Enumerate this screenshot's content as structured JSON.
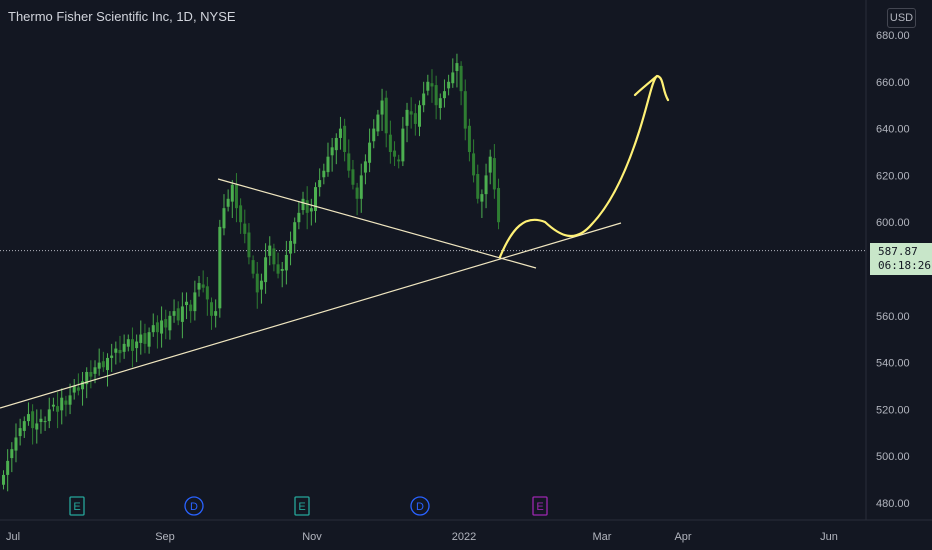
{
  "header": {
    "title": "Thermo Fisher Scientific Inc, 1D, NYSE",
    "currency": "USD"
  },
  "price_badge": {
    "price": "587.87",
    "countdown": "06:18:26"
  },
  "colors": {
    "background": "#131722",
    "up": "#4caf50",
    "down": "#2e7d32",
    "trendline": "#f0e6c0",
    "drawing": "#fff176",
    "earnings": "#26a69a",
    "dividend": "#2962ff",
    "earnings_upcoming": "#9c27b0",
    "axis_text": "#b2b5be"
  },
  "chart_data": {
    "type": "candlestick",
    "title": "Thermo Fisher Scientific Inc, 1D, NYSE",
    "y_axis": {
      "ticks": [
        "480.00",
        "500.00",
        "520.00",
        "540.00",
        "560.00",
        "580.00",
        "600.00",
        "620.00",
        "640.00",
        "660.00",
        "680.00"
      ],
      "ylim": [
        476,
        682
      ],
      "position": "right"
    },
    "x_axis": {
      "ticks": [
        "Jul",
        "Sep",
        "Nov",
        "2022",
        "Mar",
        "Apr",
        "Jun"
      ]
    },
    "last_price": 587.87,
    "candle_path_closes": [
      492,
      498,
      503,
      508,
      512,
      515,
      518,
      512,
      514,
      516,
      515,
      520,
      522,
      519,
      525,
      522,
      526,
      530,
      528,
      532,
      536,
      534,
      538,
      540,
      538,
      542,
      543,
      546,
      544,
      548,
      550,
      545,
      549,
      552,
      548,
      553,
      556,
      553,
      558,
      555,
      560,
      562,
      558,
      564,
      566,
      562,
      570,
      574,
      572,
      567,
      560,
      562,
      598,
      606,
      610,
      616,
      606,
      600,
      595,
      585,
      578,
      570,
      575,
      585,
      590,
      582,
      578,
      580,
      586,
      592,
      600,
      604,
      610,
      604,
      606,
      615,
      618,
      622,
      628,
      632,
      636,
      640,
      630,
      622,
      616,
      610,
      620,
      626,
      634,
      640,
      646,
      652,
      638,
      630,
      628,
      626,
      640,
      648,
      646,
      642,
      650,
      655,
      660,
      658,
      650,
      653,
      656,
      660,
      664,
      668,
      656,
      640,
      630,
      620,
      610,
      612,
      620,
      628,
      614,
      600
    ],
    "trendlines": [
      {
        "name": "ascending-support",
        "from": [
          "Jun 2021",
          520
        ],
        "to": [
          "Mar 2022",
          600
        ]
      },
      {
        "name": "descending-resistance",
        "from": [
          "Sep 2021",
          619
        ],
        "to": [
          "Jan 2022",
          581
        ]
      }
    ],
    "projection": {
      "description": "",
      "points_price": [
        585,
        597,
        594,
        592,
        598,
        620,
        650,
        664,
        655
      ]
    },
    "events": [
      {
        "type": "earnings",
        "label": "E",
        "near": "Jul"
      },
      {
        "type": "dividend",
        "label": "D",
        "near": "Sep"
      },
      {
        "type": "earnings",
        "label": "E",
        "near": "Oct"
      },
      {
        "type": "dividend",
        "label": "D",
        "near": "Dec"
      },
      {
        "type": "earnings_upcoming",
        "label": "E",
        "near": "Feb"
      }
    ]
  }
}
